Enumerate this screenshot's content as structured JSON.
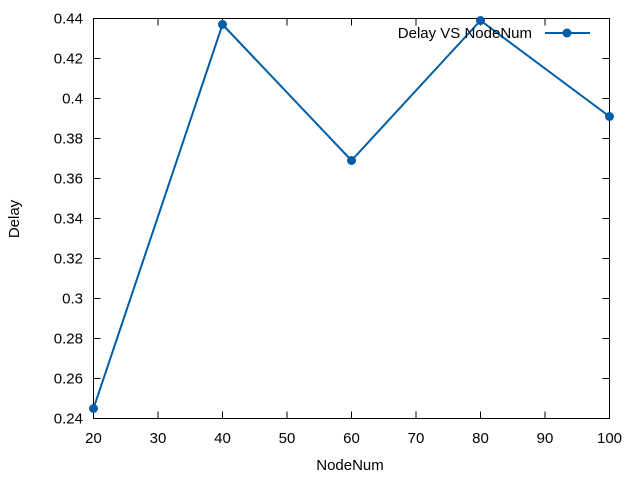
{
  "chart_data": {
    "type": "line",
    "title": "",
    "xlabel": "NodeNum",
    "ylabel": "Delay",
    "xlim": [
      20,
      100
    ],
    "ylim": [
      0.24,
      0.44
    ],
    "x_ticks": [
      "20",
      "30",
      "40",
      "50",
      "60",
      "70",
      "80",
      "90",
      "100"
    ],
    "y_ticks": [
      "0.24",
      "0.26",
      "0.28",
      "0.3",
      "0.32",
      "0.34",
      "0.36",
      "0.38",
      "0.4",
      "0.42",
      "0.44"
    ],
    "grid": false,
    "legend_position": "top-right",
    "series": [
      {
        "name": "Delay VS NodeNum",
        "color": "#005ea8",
        "marker": "circle",
        "x": [
          20,
          40,
          60,
          80,
          100
        ],
        "y": [
          0.245,
          0.437,
          0.369,
          0.439,
          0.391
        ]
      }
    ]
  }
}
